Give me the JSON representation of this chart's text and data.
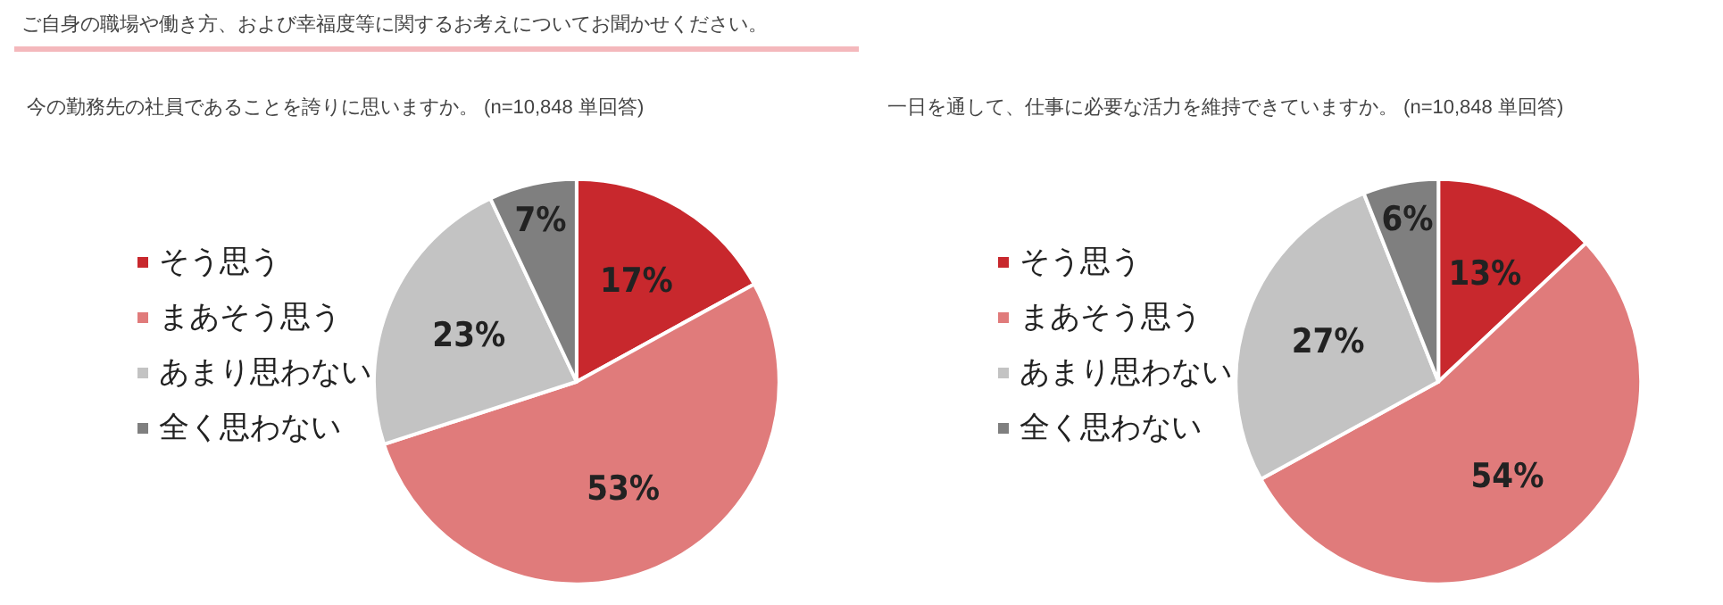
{
  "chart_data": [
    {
      "type": "pie",
      "title": "今の勤務先の社員であることを誇りに思いますか。 (n=10,848 単回答)",
      "annotations": [
        "ご自身の職場や働き方、および幸福度等に関するお考えについてお聞かせください。"
      ],
      "categories": [
        "そう思う",
        "まあそう思う",
        "あまり思わない",
        "全く思わない"
      ],
      "values": [
        17,
        53,
        23,
        7
      ],
      "value_labels": [
        "17%",
        "53%",
        "23%",
        "7%"
      ],
      "colors": [
        "#c8282d",
        "#e07b7b",
        "#c3c3c3",
        "#7f7f7f"
      ],
      "legend": "left"
    },
    {
      "type": "pie",
      "title": "一日を通して、仕事に必要な活力を維持できていますか。 (n=10,848 単回答)",
      "categories": [
        "そう思う",
        "まあそう思う",
        "あまり思わない",
        "全く思わない"
      ],
      "values": [
        13,
        54,
        27,
        6
      ],
      "value_labels": [
        "13%",
        "54%",
        "27%",
        "6%"
      ],
      "colors": [
        "#c8282d",
        "#e07b7b",
        "#c3c3c3",
        "#7f7f7f"
      ],
      "legend": "left"
    }
  ]
}
